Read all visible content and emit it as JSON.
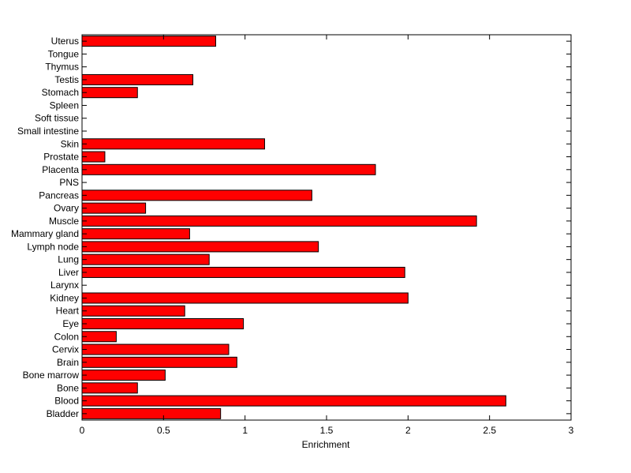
{
  "chart_data": {
    "type": "bar",
    "orientation": "horizontal",
    "title": "",
    "xlabel": "Enrichment",
    "ylabel": "",
    "xlim": [
      0,
      3
    ],
    "x_ticks": [
      "0",
      "0.5",
      "1",
      "1.5",
      "2",
      "2.5",
      "3"
    ],
    "grid": false,
    "bar_color": "#ff0000",
    "bar_edge_color": "#000000",
    "categories": [
      "Bladder",
      "Blood",
      "Bone",
      "Bone marrow",
      "Brain",
      "Cervix",
      "Colon",
      "Eye",
      "Heart",
      "Kidney",
      "Larynx",
      "Liver",
      "Lung",
      "Lymph node",
      "Mammary gland",
      "Muscle",
      "Ovary",
      "Pancreas",
      "PNS",
      "Placenta",
      "Prostate",
      "Skin",
      "Small intestine",
      "Soft tissue",
      "Spleen",
      "Stomach",
      "Testis",
      "Thymus",
      "Tongue",
      "Uterus"
    ],
    "values": [
      0.85,
      2.6,
      0.34,
      0.51,
      0.95,
      0.9,
      0.21,
      0.99,
      0.63,
      2.0,
      0,
      1.98,
      0.78,
      1.45,
      0.66,
      2.42,
      0.39,
      1.41,
      0,
      1.8,
      0.14,
      1.12,
      0,
      0,
      0,
      0.34,
      0.68,
      0,
      0,
      0.82
    ]
  }
}
